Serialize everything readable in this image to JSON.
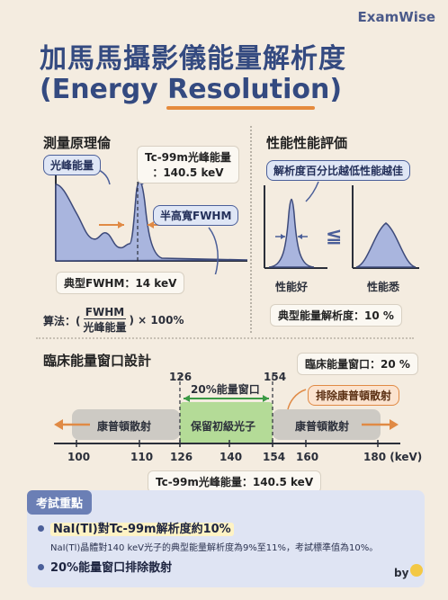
{
  "brand": "ExamWise",
  "title": {
    "line1": "加馬馬攝影儀能量解析度",
    "line2": "(Energy Resolution)"
  },
  "measure": {
    "heading": "測量原理倫",
    "photopeak_tag": "光峰能量",
    "peak_callout_line1": "Tc-99m光峰能量",
    "peak_callout_line2": "：140.5 keV",
    "fwhm_tag": "半高寬FWHM",
    "typical_fwhm": "典型FWHM：14 keV",
    "formula_prefix": "算法：(",
    "formula_num": "FWHM",
    "formula_den": "光峰能量",
    "formula_suffix": ") × 100%"
  },
  "compare": {
    "heading": "性能性能評価",
    "callout": "解析度百分比越低性能越佳",
    "symbol": "≦",
    "good": "性能好",
    "bad": "性能悉",
    "typical": "典型能量解析度：10 %"
  },
  "window": {
    "heading": "臨床能量窗口設計",
    "window_box": "臨床能量窗口：20 %",
    "low_edge": "126",
    "high_edge": "154",
    "window_label": "20%能量窗口",
    "exclude_tag": "排除康普頓散射",
    "left_band": "康普頓散射",
    "center_band": "保留初級光子",
    "right_band": "康普頓散射",
    "ticks": [
      "100",
      "110",
      "126",
      "140",
      "154",
      "160",
      "180 (keV)"
    ],
    "peak_note": "Tc-99m光峰能量：140.5 keV"
  },
  "key": {
    "title": "考試重點",
    "point1": "NaI(Tl)對Tc-99m解析度約10%",
    "point1_sub": "NaI(Tl)晶體對140 keV光子的典型能量解析度為9%至11%，考試標準值為10%。",
    "point2": "20%能量窗口排除散射",
    "byline": "by"
  },
  "colors": {
    "accent": "#344a80",
    "orange": "#e08a45",
    "green": "#a8d88a",
    "gray": "#c9c6c1",
    "peak_fill": "#a9b5de"
  }
}
